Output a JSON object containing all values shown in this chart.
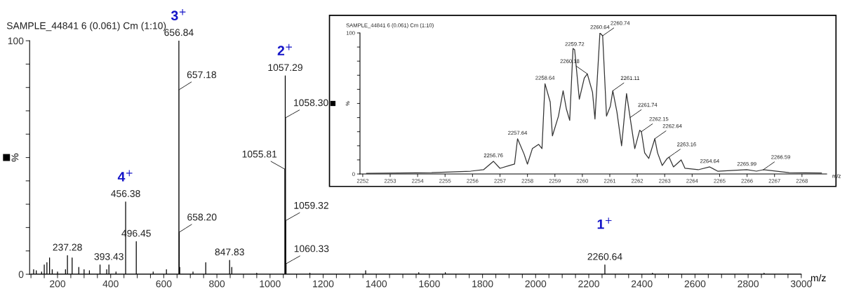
{
  "chart_data": [
    {
      "type": "line",
      "title": "SAMPLE_44841 6 (0.061) Cm (1:10)",
      "xlabel": "m/z",
      "ylabel": "%",
      "xlim": [
        95,
        3000
      ],
      "ylim": [
        0,
        100
      ],
      "xticks": [
        {
          "value": 100,
          "label": null
        },
        {
          "value": 150,
          "label": null
        },
        200,
        {
          "value": 250,
          "label": null
        },
        {
          "value": 300,
          "label": null
        },
        {
          "value": 350,
          "label": null
        },
        400,
        {
          "value": 450,
          "label": null
        },
        {
          "value": 500,
          "label": null
        },
        {
          "value": 550,
          "label": null
        },
        600,
        {
          "value": 650,
          "label": null
        },
        {
          "value": 700,
          "label": null
        },
        {
          "value": 750,
          "label": null
        },
        800,
        {
          "value": 850,
          "label": null
        },
        {
          "value": 900,
          "label": null
        },
        {
          "value": 950,
          "label": null
        },
        1000,
        {
          "value": 1050,
          "label": null
        },
        {
          "value": 1100,
          "label": null
        },
        {
          "value": 1150,
          "label": null
        },
        1200,
        {
          "value": 1250,
          "label": null
        },
        {
          "value": 1300,
          "label": null
        },
        {
          "value": 1350,
          "label": null
        },
        1400,
        {
          "value": 1450,
          "label": null
        },
        {
          "value": 1500,
          "label": null
        },
        {
          "value": 1550,
          "label": null
        },
        1600,
        {
          "value": 1650,
          "label": null
        },
        {
          "value": 1700,
          "label": null
        },
        {
          "value": 1750,
          "label": null
        },
        1800,
        {
          "value": 1850,
          "label": null
        },
        {
          "value": 1900,
          "label": null
        },
        {
          "value": 1950,
          "label": null
        },
        2000,
        {
          "value": 2050,
          "label": null
        },
        {
          "value": 2100,
          "label": null
        },
        {
          "value": 2150,
          "label": null
        },
        2200,
        {
          "value": 2250,
          "label": null
        },
        {
          "value": 2300,
          "label": null
        },
        {
          "value": 2350,
          "label": null
        },
        2400,
        {
          "value": 2450,
          "label": null
        },
        {
          "value": 2500,
          "label": null
        },
        {
          "value": 2550,
          "label": null
        },
        2600,
        {
          "value": 2650,
          "label": null
        },
        {
          "value": 2700,
          "label": null
        },
        {
          "value": 2750,
          "label": null
        },
        2800,
        {
          "value": 2850,
          "label": null
        },
        {
          "value": 2900,
          "label": null
        },
        {
          "value": 2950,
          "label": null
        },
        3000
      ],
      "yticks": [
        0,
        {
          "value": 10,
          "label": null
        },
        {
          "value": 20,
          "label": null
        },
        {
          "value": 30,
          "label": null
        },
        {
          "value": 40,
          "label": null
        },
        {
          "value": 50,
          "label": null
        },
        {
          "value": 60,
          "label": null
        },
        {
          "value": 70,
          "label": null
        },
        {
          "value": 80,
          "label": null
        },
        {
          "value": 90,
          "label": null
        },
        100
      ],
      "series": [
        {
          "color": "#000000",
          "x": [
            100,
            110,
            110,
            110,
            120,
            120,
            120,
            140,
            140,
            140,
            150,
            150,
            150,
            160,
            160,
            160,
            170,
            170,
            170,
            180,
            180,
            180,
            200,
            200,
            200,
            230,
            230,
            230,
            237.28,
            237.28,
            237.28,
            255,
            255,
            255,
            280,
            280,
            280,
            300,
            300,
            300,
            320,
            320,
            320,
            360,
            360,
            360,
            385,
            385,
            385,
            393.43,
            393.43,
            393.43,
            420,
            420,
            420,
            456.38,
            456.38,
            456.38,
            496.45,
            496.45,
            496.45,
            560,
            560,
            560,
            610,
            610,
            610,
            656.84,
            656.84,
            656.84,
            657.18,
            657.18,
            657.18,
            658.2,
            658.2,
            658.2,
            660,
            660,
            660,
            710,
            710,
            710,
            758,
            758,
            758,
            847.83,
            847.83,
            847.83,
            856,
            856,
            856,
            950,
            950,
            950,
            1055.81,
            1055.81,
            1055.81,
            1057.29,
            1057.29,
            1057.29,
            1058.3,
            1058.3,
            1058.3,
            1059.32,
            1059.32,
            1059.32,
            1060.33,
            1060.33,
            1060.33,
            1150,
            1150,
            1150,
            1360,
            1360,
            1360,
            1560,
            1560,
            1560,
            1660,
            1660,
            1660,
            2260.64,
            2260.64,
            2260.64,
            2440,
            2440,
            2440,
            2860,
            2860,
            2860,
            3000
          ],
          "values": [
            0,
            0,
            2,
            0,
            0,
            1.5,
            0,
            0,
            1,
            0,
            0,
            4,
            0,
            0,
            5,
            0,
            0,
            7,
            0,
            0,
            2,
            0,
            0,
            1,
            0,
            0,
            2,
            0,
            0,
            8,
            0,
            0,
            7,
            0,
            0,
            3,
            0,
            0,
            2,
            0,
            0,
            1.5,
            0,
            0,
            4,
            0,
            0,
            2,
            0,
            0,
            4,
            0,
            0,
            1,
            0,
            0,
            31,
            0,
            0,
            14,
            0,
            0,
            1,
            0,
            0,
            2,
            0,
            0,
            100,
            0,
            0,
            79,
            0,
            0,
            18,
            0,
            0,
            3,
            0,
            0,
            1,
            0,
            0,
            5,
            0,
            0,
            6,
            0,
            0,
            3,
            0,
            0,
            0.5,
            0,
            0,
            45,
            0,
            0,
            85,
            0,
            0,
            67,
            0,
            0,
            23,
            0,
            0,
            4.5,
            0,
            0,
            0.5,
            0,
            0,
            1.5,
            0,
            0,
            0.7,
            0,
            0,
            0.7,
            0,
            0,
            4,
            0,
            0,
            0.5,
            0,
            0,
            0.5,
            0,
            0
          ]
        }
      ],
      "annotations": [
        {
          "text": "3$^{+}$",
          "x": 656.84,
          "y": 100
        },
        {
          "text": "2$^{+}$",
          "x": 1057.29,
          "y": 85
        },
        {
          "text": "4$^{+}$",
          "x": 456.38,
          "y": 31
        },
        {
          "text": "1$^{+}$",
          "x": 2260.64,
          "y": 4
        },
        {
          "text": "656.84",
          "x": 656.84,
          "y": 100
        },
        {
          "text": "657.18",
          "x": 657.18,
          "y": 79
        },
        {
          "text": "658.20",
          "x": 658.2,
          "y": 18
        },
        {
          "text": "1057.29",
          "x": 1057.29,
          "y": 85
        },
        {
          "text": "1058.30",
          "x": 1058.3,
          "y": 67
        },
        {
          "text": "1055.81",
          "x": 1055.81,
          "y": 45
        },
        {
          "text": "1059.32",
          "x": 1059.32,
          "y": 23
        },
        {
          "text": "1060.33",
          "x": 1060.33,
          "y": 4.5
        },
        {
          "text": "456.38",
          "x": 456.38,
          "y": 31
        },
        {
          "text": "496.45",
          "x": 496.45,
          "y": 14
        },
        {
          "text": "237.28",
          "x": 237.28,
          "y": 8
        },
        {
          "text": "393.43",
          "x": 393.43,
          "y": 4
        },
        {
          "text": "847.83",
          "x": 847.83,
          "y": 6
        },
        {
          "text": "2260.64",
          "x": 2260.64,
          "y": 4
        }
      ]
    },
    {
      "type": "line",
      "title": "SAMPLE_44841 6 (0.061) Cm (1:10)",
      "xlabel": "m/z",
      "ylabel": "%",
      "xlim": [
        2251.9,
        2268.9
      ],
      "ylim": [
        0,
        100
      ],
      "xticks": [
        2252,
        2253,
        2254,
        2255,
        2256,
        2257,
        2258,
        2259,
        2260,
        2261,
        2262,
        2263,
        2264,
        2265,
        2266,
        2267,
        2268
      ],
      "yticks": [
        0,
        {
          "value": 10,
          "label": null
        },
        {
          "value": 20,
          "label": null
        },
        {
          "value": 30,
          "label": null
        },
        {
          "value": 40,
          "label": null
        },
        {
          "value": 50,
          "label": null
        },
        {
          "value": 60,
          "label": null
        },
        {
          "value": 70,
          "label": null
        },
        {
          "value": 80,
          "label": null
        },
        {
          "value": 90,
          "label": null
        },
        100
      ],
      "series": [
        {
          "color": "#333333",
          "x": [
            2252.14,
            2254.51,
            2255.93,
            2256.4,
            2256.76,
            2257.0,
            2257.35,
            2257.53,
            2257.64,
            2257.88,
            2258.0,
            2258.18,
            2258.41,
            2258.53,
            2258.64,
            2258.83,
            2258.91,
            2259.13,
            2259.3,
            2259.42,
            2259.54,
            2259.66,
            2259.72,
            2259.89,
            2260.07,
            2260.18,
            2260.37,
            2260.46,
            2260.64,
            2260.74,
            2260.88,
            2261.02,
            2261.11,
            2261.26,
            2261.43,
            2261.61,
            2261.74,
            2261.91,
            2262.09,
            2262.15,
            2262.27,
            2262.42,
            2262.64,
            2262.74,
            2262.91,
            2263.09,
            2263.16,
            2263.32,
            2263.6,
            2263.74,
            2264.22,
            2264.64,
            2264.93,
            2265.99,
            2266.34,
            2266.59,
            2267.53,
            2268.71
          ],
          "values": [
            0.5,
            1,
            2,
            3,
            9,
            4,
            6,
            7,
            25,
            14,
            7,
            18,
            21,
            18,
            64,
            51,
            27,
            41,
            59,
            46,
            38,
            89,
            88,
            53,
            68,
            71,
            58,
            39,
            100,
            98,
            41,
            48,
            59,
            44,
            20,
            57,
            40,
            18,
            31,
            30,
            15,
            11,
            25,
            15,
            6,
            11,
            12,
            5,
            10,
            4,
            3,
            5,
            2,
            3,
            2,
            3,
            1,
            0.7
          ]
        }
      ],
      "annotations": [
        {
          "text": "2260.64",
          "x": 2260.64,
          "y": 100
        },
        {
          "text": "2260.74",
          "x": 2260.74,
          "y": 98
        },
        {
          "text": "2259.72",
          "x": 2259.72,
          "y": 88
        },
        {
          "text": "2260.18",
          "x": 2260.18,
          "y": 71
        },
        {
          "text": "2258.64",
          "x": 2258.64,
          "y": 64
        },
        {
          "text": "2261.11",
          "x": 2261.11,
          "y": 59
        },
        {
          "text": "2261.74",
          "x": 2261.74,
          "y": 40
        },
        {
          "text": "2262.15",
          "x": 2262.15,
          "y": 30
        },
        {
          "text": "2262.64",
          "x": 2262.64,
          "y": 25
        },
        {
          "text": "2257.64",
          "x": 2257.64,
          "y": 25
        },
        {
          "text": "2263.16",
          "x": 2263.16,
          "y": 12
        },
        {
          "text": "2256.76",
          "x": 2256.76,
          "y": 9
        },
        {
          "text": "2264.64",
          "x": 2264.64,
          "y": 5
        },
        {
          "text": "2265.99",
          "x": 2265.99,
          "y": 3
        },
        {
          "text": "2266.59",
          "x": 2266.59,
          "y": 3
        }
      ]
    }
  ]
}
